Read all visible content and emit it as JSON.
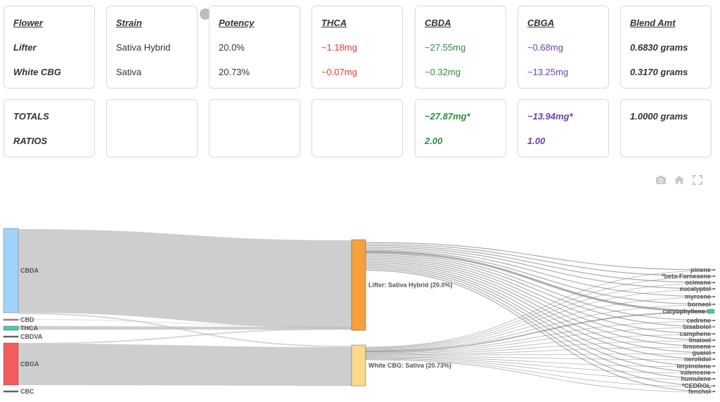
{
  "cards": {
    "flower": {
      "header": "Flower",
      "r1": "Lifter",
      "r2": "White CBG"
    },
    "strain": {
      "header": "Strain",
      "r1": "Sativa Hybrid",
      "r2": "Sativa"
    },
    "potency": {
      "header": "Potency",
      "r1": "20.0%",
      "r2": "20.73%"
    },
    "thca": {
      "header": "THCA",
      "r1": "~1.18mg",
      "r2": "~0.07mg"
    },
    "cbda": {
      "header": "CBDA",
      "r1": "~27.55mg",
      "r2": "~0.32mg"
    },
    "cbga": {
      "header": "CBGA",
      "r1": "~0.68mg",
      "r2": "~13.25mg"
    },
    "blend": {
      "header": "Blend Amt",
      "r1": "0.6830 grams",
      "r2": "0.3170 grams"
    }
  },
  "totals": {
    "label_totals": "TOTALS",
    "label_ratios": "RATIOS",
    "cbda_total": "~27.87mg*",
    "cbda_ratio": "2.00",
    "cbga_total": "~13.94mg*",
    "cbga_ratio": "1.00",
    "blend_total": "1.0000 grams"
  },
  "toolbar": {
    "icons": [
      "camera-icon",
      "home-icon",
      "autoscale-icon"
    ]
  },
  "sankey": {
    "sources": [
      {
        "label": "CBDA",
        "color": "#9fd3fb"
      },
      {
        "label": "CBD",
        "color": "#e57373"
      },
      {
        "label": "THCA",
        "color": "#48c9a9"
      },
      {
        "label": "CBDVA",
        "color": "#666666"
      },
      {
        "label": "CBGA",
        "color": "#f25c5c"
      },
      {
        "label": "CBC",
        "color": "#666666"
      }
    ],
    "flowers": [
      {
        "label": "Lifter: Sativa Hybrid (20.0%)",
        "color": "#f7a03b"
      },
      {
        "label": "White CBG: Sativa (20.73%)",
        "color": "#fcd98a"
      }
    ],
    "terpenes": [
      {
        "label": "pinene",
        "color": "#666666"
      },
      {
        "label": "*beta-Farnesene",
        "color": "#666666"
      },
      {
        "label": "ocimene",
        "color": "#666666"
      },
      {
        "label": "eucalyptol",
        "color": "#666666"
      },
      {
        "label": "myrcene",
        "color": "#666666"
      },
      {
        "label": "borneol",
        "color": "#666666"
      },
      {
        "label": "caryophyllene",
        "color": "#48c9a9"
      },
      {
        "label": "cedrene",
        "color": "#666666"
      },
      {
        "label": "bisabolol",
        "color": "#f7a03b"
      },
      {
        "label": "camphene",
        "color": "#666666"
      },
      {
        "label": "linalool",
        "color": "#666666"
      },
      {
        "label": "limonene",
        "color": "#666666"
      },
      {
        "label": "guaiol",
        "color": "#666666"
      },
      {
        "label": "nerolidol",
        "color": "#666666"
      },
      {
        "label": "terpinolene",
        "color": "#666666"
      },
      {
        "label": "valencene",
        "color": "#666666"
      },
      {
        "label": "humulene",
        "color": "#666666"
      },
      {
        "label": "*CEDROL",
        "color": "#666666"
      },
      {
        "label": "fenchol",
        "color": "#666666"
      }
    ]
  }
}
